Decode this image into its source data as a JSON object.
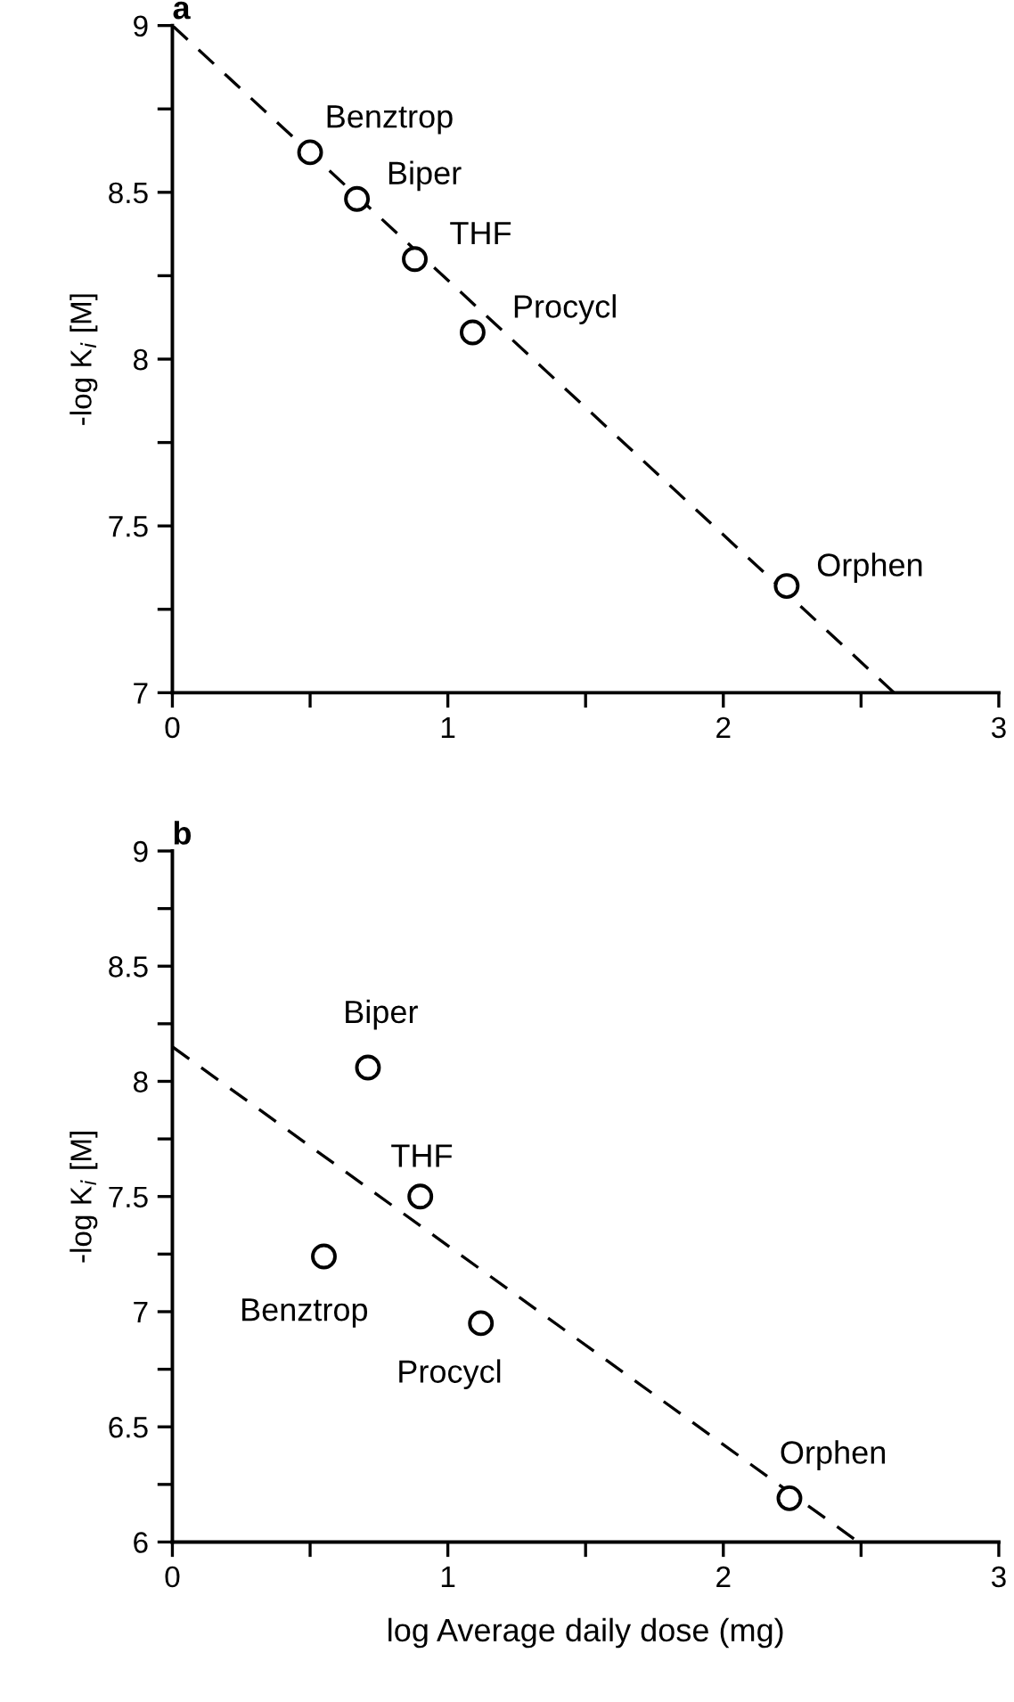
{
  "chart_data": [
    {
      "type": "scatter",
      "title": "a",
      "ylabel": "-log K$_{i}$ [M]",
      "xlim": [
        0,
        3
      ],
      "ylim": [
        7,
        9
      ],
      "xticks": [
        0,
        {
          "value": 0.5,
          "label": null
        },
        1,
        {
          "value": 1.5,
          "label": null
        },
        2,
        {
          "value": 2.5,
          "label": null
        },
        3
      ],
      "yticks": [
        7,
        {
          "value": 7.25,
          "label": null
        },
        7.5,
        {
          "value": 7.75,
          "label": null
        },
        8,
        {
          "value": 8.25,
          "label": null
        },
        8.5,
        {
          "value": 8.75,
          "label": null
        },
        9
      ],
      "grid": false,
      "legend": false,
      "series": [
        {
          "marker": "circle",
          "color": "#000000",
          "x": [
            0.5,
            0.67,
            0.88,
            1.09,
            2.23
          ],
          "values": [
            8.62,
            8.48,
            8.3,
            8.08,
            7.32
          ]
        },
        {
          "type": "line",
          "line_style": "dashed",
          "color": "#000000",
          "x": [
            0,
            2.62
          ],
          "values": [
            9,
            7
          ]
        }
      ],
      "annotations": [
        {
          "text": "Benztrop",
          "x": 0.5,
          "y": 8.62
        },
        {
          "text": "Biper",
          "x": 0.67,
          "y": 8.48
        },
        {
          "text": "THF",
          "x": 0.88,
          "y": 8.3
        },
        {
          "text": "Procycl",
          "x": 1.09,
          "y": 8.08
        },
        {
          "text": "Orphen",
          "x": 2.23,
          "y": 7.32
        }
      ]
    },
    {
      "type": "scatter",
      "title": "b",
      "ylabel": "-log K$_{i}$ [M]",
      "xlabel": "log Average daily dose (mg)",
      "xlim": [
        0,
        3
      ],
      "ylim": [
        6,
        9
      ],
      "xticks": [
        0,
        {
          "value": 0.5,
          "label": null
        },
        1,
        {
          "value": 1.5,
          "label": null
        },
        2,
        {
          "value": 2.5,
          "label": null
        },
        3
      ],
      "yticks": [
        6,
        {
          "value": 6.25,
          "label": null
        },
        6.5,
        {
          "value": 6.75,
          "label": null
        },
        7,
        {
          "value": 7.25,
          "label": null
        },
        7.5,
        {
          "value": 7.75,
          "label": null
        },
        8,
        {
          "value": 8.25,
          "label": null
        },
        8.5,
        {
          "value": 8.75,
          "label": null
        },
        9
      ],
      "grid": false,
      "legend": false,
      "series": [
        {
          "marker": "circle",
          "color": "#000000",
          "x": [
            0.71,
            0.9,
            0.55,
            1.12,
            2.24
          ],
          "values": [
            8.06,
            7.5,
            7.24,
            6.95,
            6.19
          ]
        },
        {
          "type": "line",
          "line_style": "dashed",
          "color": "#000000",
          "x": [
            0,
            2.49
          ],
          "values": [
            8.15,
            6
          ]
        }
      ],
      "annotations": [
        {
          "text": "Biper",
          "x": 0.71,
          "y": 8.06
        },
        {
          "text": "THF",
          "x": 0.9,
          "y": 7.5
        },
        {
          "text": "Benztrop",
          "x": 0.55,
          "y": 7.24
        },
        {
          "text": "Procycl",
          "x": 1.12,
          "y": 6.95
        },
        {
          "text": "Orphen",
          "x": 2.24,
          "y": 6.19
        }
      ]
    }
  ]
}
